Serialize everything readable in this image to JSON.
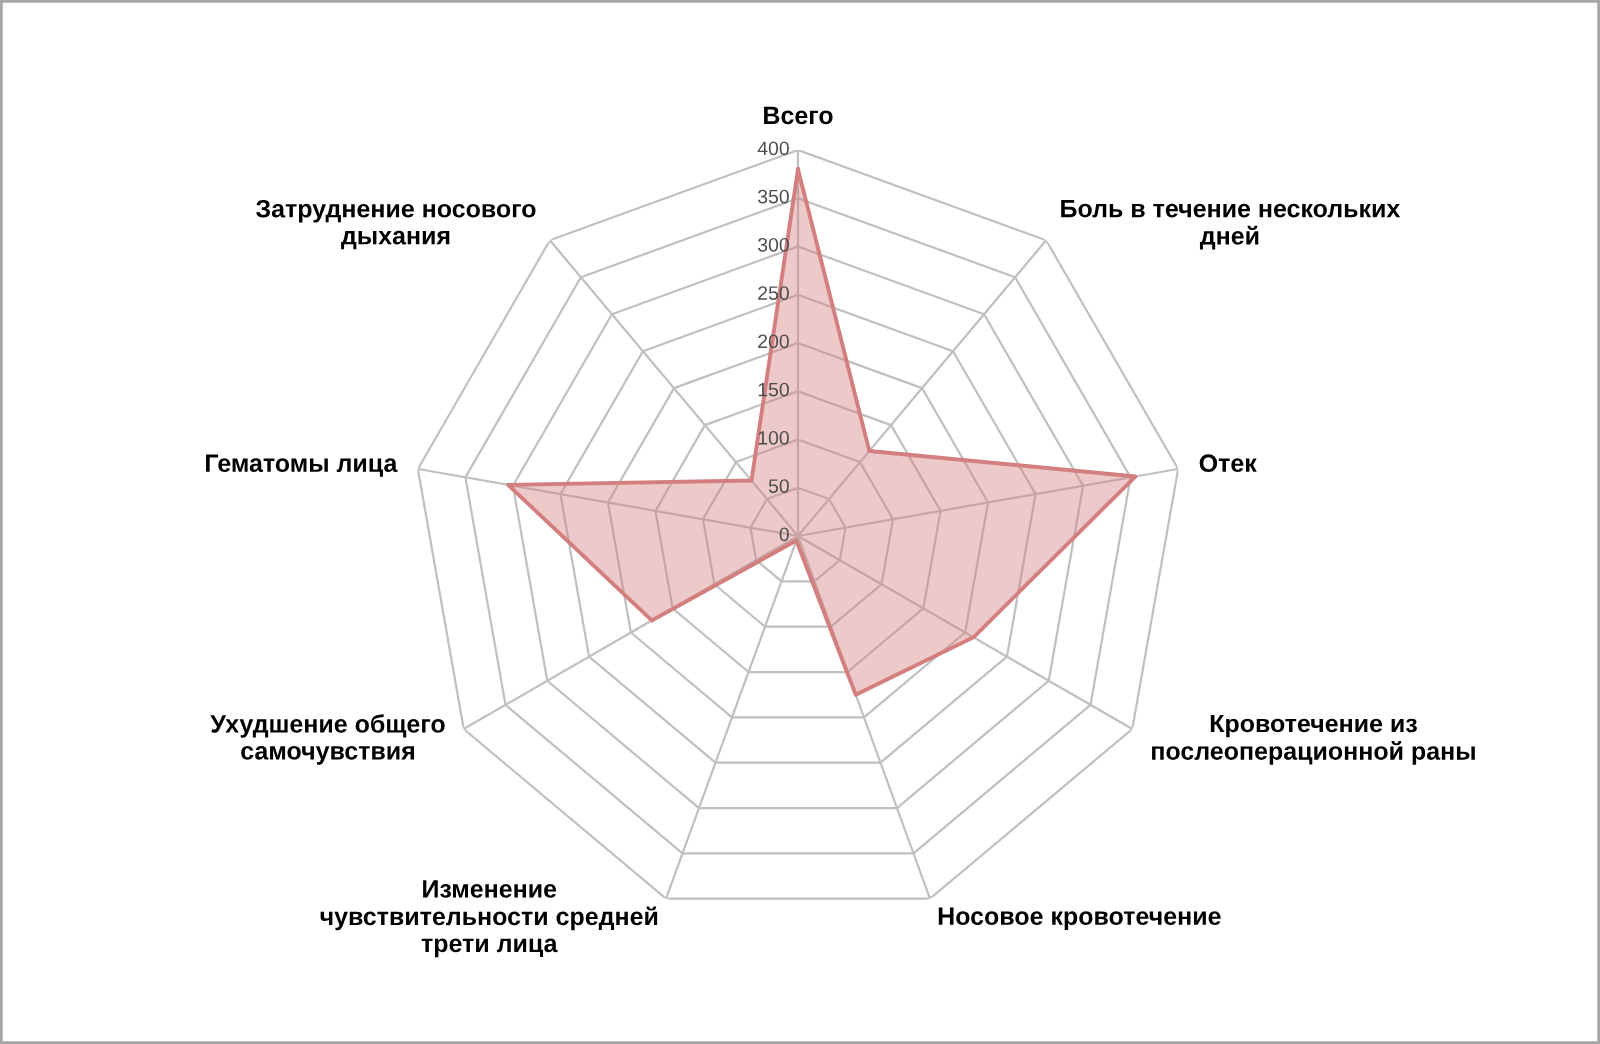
{
  "chart_data": {
    "type": "radar",
    "categories": [
      "Всего",
      "Боль в течение нескольких\nдней",
      "Отек",
      "Кровотечение из\nпослеоперационной раны",
      "Носовое кровотечение",
      "Изменение\nчувствительности средней\nтрети лица",
      "Ухудшение общего\nсамочувствия",
      "Гематомы лица",
      "Затруднение носового\nдыхания"
    ],
    "series": [
      {
        "color": "#d47f7f",
        "values": [
          380,
          115,
          355,
          210,
          175,
          5,
          175,
          305,
          75
        ]
      }
    ],
    "ylim": [
      0,
      400
    ],
    "yticks": [
      0,
      50,
      100,
      150,
      200,
      250,
      300,
      350,
      400
    ],
    "grid": true
  }
}
